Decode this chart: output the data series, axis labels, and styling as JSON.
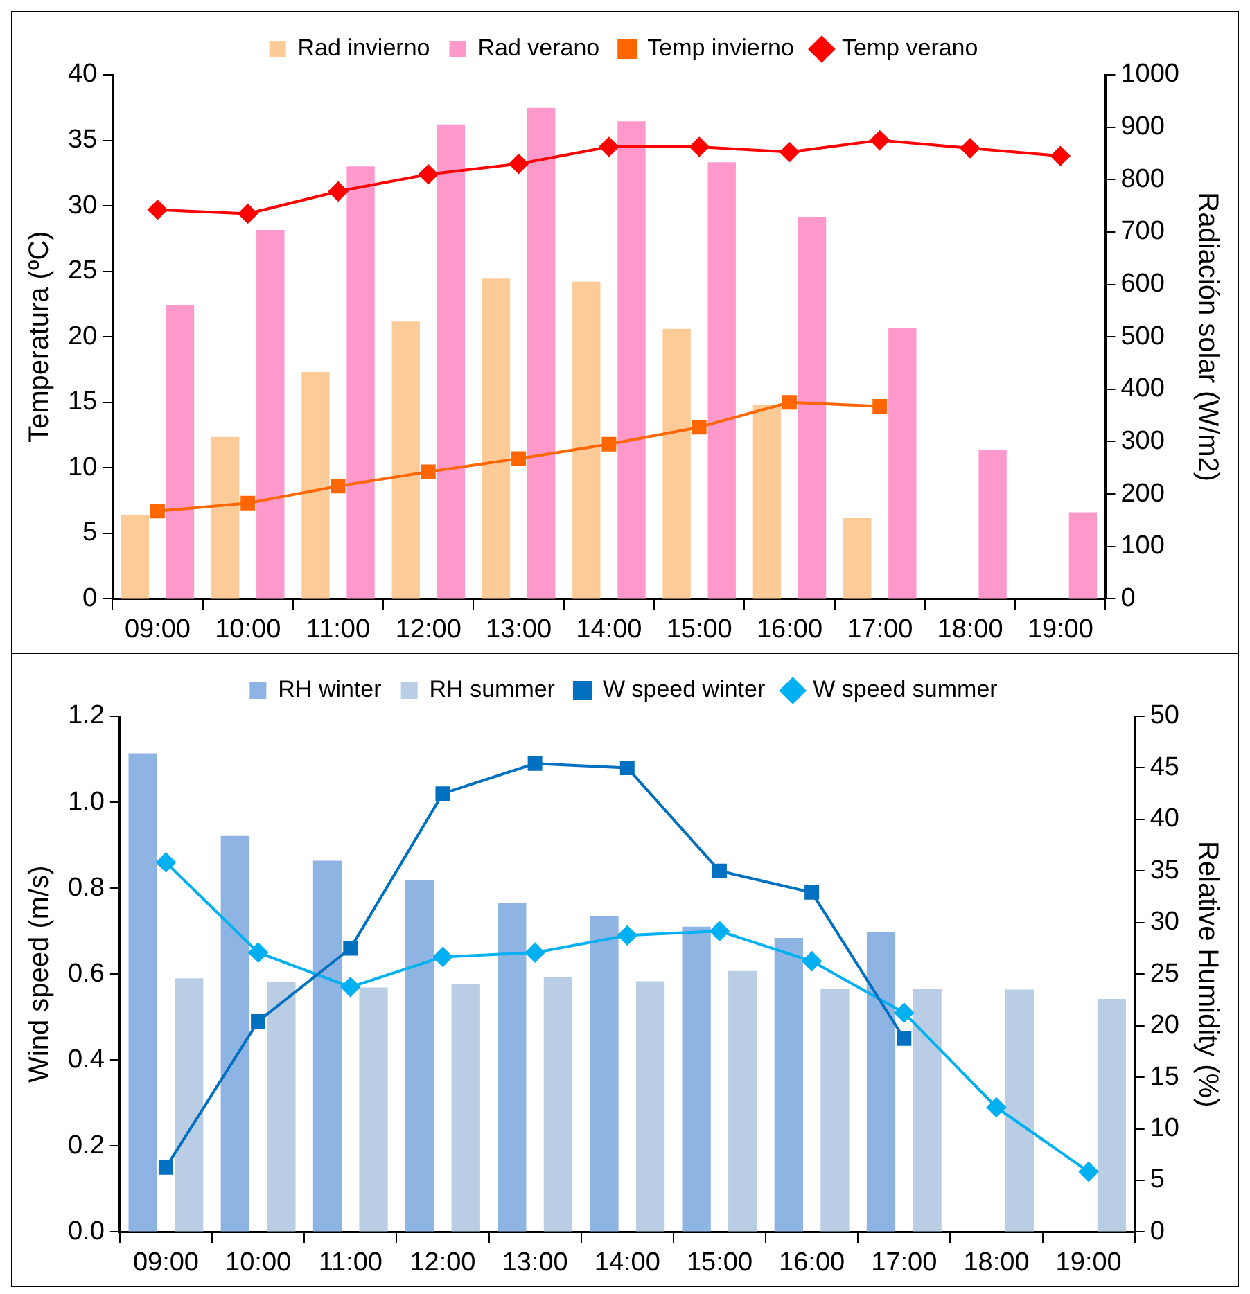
{
  "chart_data": [
    {
      "type": "bar",
      "categories": [
        "09:00",
        "10:00",
        "11:00",
        "12:00",
        "13:00",
        "14:00",
        "15:00",
        "16:00",
        "17:00",
        "18:00",
        "19:00"
      ],
      "ylabel": "Temperatura (ºC)",
      "y2label": "Radiación solar (W/m2)",
      "ylim": [
        0,
        40
      ],
      "yticks": [
        0,
        5,
        10,
        15,
        20,
        25,
        30,
        35,
        40
      ],
      "y2lim": [
        0,
        1000
      ],
      "y2ticks": [
        0,
        100,
        200,
        300,
        400,
        500,
        600,
        700,
        800,
        900,
        1000
      ],
      "legend": "top",
      "grid": false,
      "series": [
        {
          "name": "Rad invierno",
          "axis": "y2",
          "color": "#fdcb98",
          "values": [
            160,
            309,
            433,
            529,
            611,
            605,
            515,
            370,
            154,
            null,
            null
          ]
        },
        {
          "name": "Rad verano",
          "axis": "y2",
          "color": "#ff99cc",
          "values": [
            561,
            704,
            825,
            905,
            937,
            911,
            833,
            729,
            517,
            284,
            165
          ]
        },
        {
          "name": "Temp invierno",
          "type": "line",
          "marker": "square",
          "color": "#ff6600",
          "values": [
            6.7,
            7.3,
            8.6,
            9.7,
            10.7,
            11.8,
            13.1,
            15.0,
            14.7,
            null,
            null
          ]
        },
        {
          "name": "Temp verano",
          "type": "line",
          "marker": "diamond",
          "color": "#ff0000",
          "values": [
            29.7,
            29.4,
            31.1,
            32.4,
            33.2,
            34.5,
            34.5,
            34.1,
            35.0,
            34.4,
            33.8
          ]
        }
      ]
    },
    {
      "type": "bar",
      "categories": [
        "09:00",
        "10:00",
        "11:00",
        "12:00",
        "13:00",
        "14:00",
        "15:00",
        "16:00",
        "17:00",
        "18:00",
        "19:00"
      ],
      "ylabel": "Wind speed (m/s)",
      "y2label": "Relative Humidity (%)",
      "ylim": [
        0,
        1.2
      ],
      "yticks": [
        {
          "value": 0,
          "label": "0.0"
        },
        0.2,
        0.4,
        0.6,
        0.8,
        {
          "value": 1,
          "label": "1.0"
        },
        1.2
      ],
      "y2lim": [
        0,
        50
      ],
      "y2ticks": [
        0,
        5,
        10,
        15,
        20,
        25,
        30,
        35,
        40,
        45,
        50
      ],
      "legend": "top",
      "grid": false,
      "series": [
        {
          "name": "RH winter",
          "axis": "y2",
          "color": "#8eb4e3",
          "values": [
            46.4,
            38.4,
            36.0,
            34.1,
            31.9,
            30.6,
            29.6,
            28.5,
            29.1,
            null,
            null
          ]
        },
        {
          "name": "RH summer",
          "axis": "y2",
          "color": "#b9cde5",
          "values": [
            24.6,
            24.2,
            23.7,
            24.0,
            24.7,
            24.3,
            25.3,
            23.6,
            23.6,
            23.5,
            22.6
          ]
        },
        {
          "name": "W speed winter",
          "type": "line",
          "marker": "square",
          "color": "#0070c0",
          "values": [
            0.15,
            0.49,
            0.66,
            1.02,
            1.09,
            1.08,
            0.84,
            0.79,
            0.45,
            null,
            null
          ]
        },
        {
          "name": "W speed summer",
          "type": "line",
          "marker": "diamond",
          "color": "#00b0f0",
          "values": [
            0.86,
            0.65,
            0.57,
            0.64,
            0.65,
            0.69,
            0.7,
            0.63,
            0.51,
            0.29,
            0.14
          ]
        }
      ]
    }
  ]
}
